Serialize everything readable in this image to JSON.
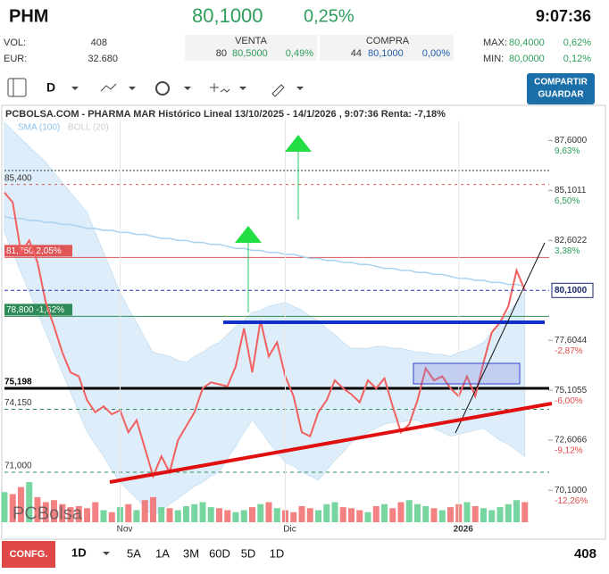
{
  "header": {
    "symbol": "PHM",
    "price": "80,1000",
    "change": "0,25%",
    "time": "9:07:36"
  },
  "stats": {
    "vol_label": "VOL:",
    "vol": "408",
    "eur_label": "EUR:",
    "eur": "32.680",
    "venta_label": "VENTA",
    "venta_qty": "80",
    "venta_price": "80,5000",
    "venta_pct": "0,49%",
    "compra_label": "COMPRA",
    "compra_qty": "44",
    "compra_price": "80,1000",
    "compra_pct": "0,00%",
    "max_label": "MAX:",
    "max": "80,4000",
    "max_pct": "0,62%",
    "min_label": "MIN:",
    "min": "80,0000",
    "min_pct": "0,12%"
  },
  "toolbar": {
    "period": "D",
    "save_line1": "COMPARTIR",
    "save_line2": "GUARDAR"
  },
  "chart_data": {
    "type": "line",
    "title": "PCBOLSA.COM - PHARMA MAR Histórico Lineal 13/10/2025 - 14/1/2026 , 9:07:36 Renta: -7,18%",
    "watermark": "PCBolsa",
    "categories": [
      null,
      null,
      null,
      null,
      null,
      null,
      null,
      null,
      null,
      null,
      null,
      null,
      null,
      null,
      "Nov",
      null,
      null,
      null,
      null,
      null,
      null,
      null,
      null,
      null,
      null,
      null,
      null,
      null,
      null,
      null,
      null,
      null,
      null,
      null,
      "Dic",
      null,
      null,
      null,
      null,
      null,
      null,
      null,
      null,
      null,
      null,
      null,
      null,
      null,
      null,
      null,
      null,
      null,
      null,
      null,
      null,
      "2026",
      null,
      null,
      null,
      null,
      null,
      null,
      null,
      null
    ],
    "values": [
      85.0,
      84.5,
      82.0,
      82.6,
      81.5,
      79.5,
      78.3,
      77.0,
      76.0,
      75.8,
      74.6,
      74.0,
      74.3,
      73.9,
      74.1,
      73.0,
      73.6,
      72.2,
      70.8,
      71.8,
      71.0,
      72.6,
      73.3,
      74.0,
      75.2,
      75.5,
      75.4,
      75.3,
      76.3,
      78.2,
      76.0,
      78.6,
      76.8,
      77.5,
      75.8,
      74.8,
      73.0,
      72.8,
      74.0,
      74.6,
      75.6,
      75.2,
      74.9,
      74.5,
      75.6,
      75.2,
      75.7,
      74.3,
      73.0,
      73.4,
      74.6,
      76.2,
      75.6,
      75.8,
      75.2,
      74.8,
      75.8,
      74.8,
      76.5,
      78.0,
      78.5,
      79.3,
      81.1,
      80.1
    ],
    "color": "#f26060",
    "sma": {
      "name": "SMA (100)",
      "color": "#a9d2f0",
      "values": [
        83.8,
        83.7,
        83.7,
        83.6,
        83.6,
        83.5,
        83.5,
        83.4,
        83.4,
        83.3,
        83.2,
        83.2,
        83.1,
        83.1,
        83.0,
        83.0,
        82.9,
        82.9,
        82.8,
        82.7,
        82.7,
        82.6,
        82.6,
        82.5,
        82.5,
        82.4,
        82.4,
        82.3,
        82.2,
        82.2,
        82.1,
        82.1,
        82.0,
        82.0,
        81.9,
        81.9,
        81.8,
        81.7,
        81.7,
        81.6,
        81.6,
        81.5,
        81.5,
        81.4,
        81.4,
        81.3,
        81.2,
        81.2,
        81.1,
        81.1,
        81.0,
        81.0,
        80.9,
        80.9,
        80.8,
        80.7,
        80.7,
        80.6,
        80.6,
        80.5,
        80.5,
        80.4,
        80.4,
        80.3
      ]
    },
    "boll": {
      "name": "BOLL (20)",
      "color": "#cfe6f7",
      "upper": [
        88.5,
        88.1,
        87.7,
        87.3,
        86.9,
        86.5,
        86.0,
        85.5,
        85.0,
        84.5,
        84.0,
        83.0,
        82.0,
        81.0,
        80.0,
        79.2,
        78.5,
        77.7,
        77.0,
        76.9,
        76.8,
        76.6,
        76.5,
        76.8,
        77.0,
        77.3,
        77.5,
        77.9,
        78.3,
        78.6,
        79.0,
        79.1,
        79.3,
        79.4,
        79.5,
        79.3,
        79.1,
        78.8,
        78.6,
        78.2,
        77.9,
        77.5,
        77.2,
        77.2,
        77.2,
        77.3,
        77.3,
        77.2,
        77.2,
        77.1,
        77.0,
        77.0,
        76.9,
        76.9,
        76.8,
        77.0,
        77.1,
        77.3,
        77.5,
        78.0,
        78.5,
        79.0,
        79.5,
        80.0
      ],
      "lower": [
        83,
        82,
        81,
        80,
        79,
        78,
        77,
        76,
        75,
        74,
        73,
        72.4,
        71.8,
        71.1,
        70.5,
        70.1,
        69.7,
        69.2,
        68.8,
        69.1,
        69.4,
        69.7,
        70.0,
        70.3,
        70.5,
        70.8,
        71.0,
        71.7,
        72.3,
        73.0,
        73.6,
        73.1,
        72.5,
        72.0,
        71.5,
        71.3,
        71.0,
        70.8,
        70.6,
        71.1,
        71.6,
        72.0,
        72.5,
        72.7,
        73.0,
        73.2,
        73.4,
        73.5,
        73.5,
        73.6,
        73.6,
        73.4,
        73.2,
        73.0,
        72.8,
        72.9,
        73.0,
        73.1,
        73.2,
        72.9,
        72.6,
        72.4,
        72.1,
        71.8
      ]
    },
    "volumes": [
      30,
      28,
      35,
      40,
      25,
      20,
      22,
      18,
      15,
      16,
      14,
      20,
      12,
      10,
      15,
      18,
      12,
      22,
      25,
      15,
      14,
      12,
      16,
      18,
      20,
      15,
      14,
      12,
      10,
      12,
      15,
      18,
      20,
      14,
      12,
      10,
      16,
      14,
      12,
      18,
      20,
      15,
      14,
      12,
      10,
      16,
      18,
      14,
      20,
      22,
      18,
      16,
      14,
      12,
      15,
      18,
      20,
      16,
      14,
      12,
      15,
      18,
      22,
      20
    ],
    "up_color": "#5fcf8f",
    "down_color": "#f26b6b",
    "ylim": [
      68.5,
      88.6
    ],
    "yticks": [
      {
        "value": 87.6,
        "label": "87,6000",
        "sub": "9,63%"
      },
      {
        "value": 85.1011,
        "label": "85,1011",
        "sub": "6,50%"
      },
      {
        "value": 82.6022,
        "label": "82,6022",
        "sub": "3,38%"
      },
      {
        "value": 77.6044,
        "label": "77,6044",
        "sub": "-2,87%"
      },
      {
        "value": 75.1055,
        "label": "75,1055",
        "sub": "-6,00%"
      },
      {
        "value": 72.6066,
        "label": "72,6066",
        "sub": "-9,12%"
      },
      {
        "value": 70.1,
        "label": "70,1000",
        "sub": "-12,26%"
      }
    ],
    "last": {
      "value": 80.1,
      "label": "80,1000"
    },
    "levels": [
      {
        "value": 86.1,
        "color": "#333333",
        "dash": "2,2",
        "width": 1
      },
      {
        "value": 85.4,
        "label": "85,400",
        "color": "#e05555",
        "dash": "3,4",
        "width": 1
      },
      {
        "value": 81.75,
        "label": "81,750  2,05%",
        "color": "#e05555",
        "width": 1,
        "box": true
      },
      {
        "value": 78.8,
        "label": "78,800  -1,62%",
        "color": "#2e8b57",
        "width": 1,
        "box": true
      },
      {
        "value": 75.198,
        "label": "75,198",
        "color": "#000000",
        "width": 3
      },
      {
        "value": 74.15,
        "label": "74,150",
        "color": "#2e8b57",
        "dash": "4,4",
        "width": 1
      },
      {
        "value": 71.0,
        "label": "71,000",
        "color": "#2e8b57",
        "dash": "4,4",
        "width": 1
      }
    ]
  },
  "footer": {
    "config": "CONFG.",
    "interval": "1D",
    "ranges": [
      "5A",
      "1A",
      "3M",
      "60D",
      "5D",
      "1D"
    ],
    "volume": "408"
  }
}
